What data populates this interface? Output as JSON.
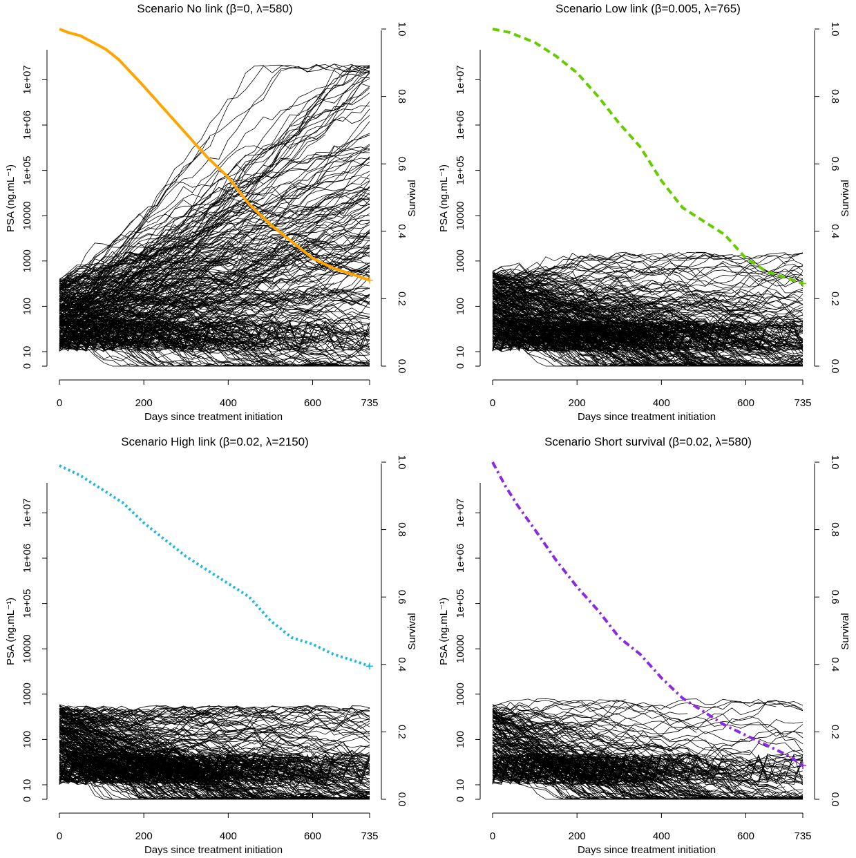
{
  "figure": {
    "panels_description": "four panels"
  },
  "chart_data": [
    {
      "type": "line",
      "title": "Scenario No link (β=0, λ=580)",
      "xlabel": "Days since treatment initiation",
      "ylabel_left": "PSA (ng.mL⁻¹)",
      "ylabel_right": "Survival",
      "x_ticks": [
        "0",
        "200",
        "400",
        "600",
        "735"
      ],
      "y_left_ticks": [
        "0",
        "10",
        "100",
        "1000",
        "10000",
        "1e+05",
        "1e+06",
        "1e+07"
      ],
      "y_right_ticks": [
        "0.0",
        "0.2",
        "0.4",
        "0.6",
        "0.8",
        "1.0"
      ],
      "xlim": [
        0,
        735
      ],
      "y_left_scale": "log (0 placed below 10)",
      "y_right_lim": [
        0,
        1
      ],
      "survival_color": "#FFA500",
      "survival_style": "solid",
      "survival_curve": {
        "x": [
          0,
          20,
          50,
          80,
          110,
          140,
          170,
          200,
          250,
          300,
          350,
          400,
          450,
          500,
          550,
          600,
          650,
          700,
          735
        ],
        "y": [
          1.0,
          0.99,
          0.98,
          0.96,
          0.94,
          0.91,
          0.87,
          0.83,
          0.76,
          0.69,
          0.62,
          0.56,
          0.48,
          0.42,
          0.37,
          0.32,
          0.29,
          0.27,
          0.255
        ]
      },
      "psa_trajectories": {
        "n_patients": 300,
        "start_range_ng_per_ml": [
          10,
          400
        ],
        "trend": "strong rise in a large share of patients, up to about 1e+07"
      }
    },
    {
      "type": "line",
      "title": "Scenario Low link (β=0.005, λ=765)",
      "xlabel": "Days since treatment initiation",
      "ylabel_left": "PSA (ng.mL⁻¹)",
      "ylabel_right": "Survival",
      "x_ticks": [
        "0",
        "200",
        "400",
        "600",
        "735"
      ],
      "y_left_ticks": [
        "0",
        "10",
        "100",
        "1000",
        "10000",
        "1e+05",
        "1e+06",
        "1e+07"
      ],
      "y_right_ticks": [
        "0.0",
        "0.2",
        "0.4",
        "0.6",
        "0.8",
        "1.0"
      ],
      "xlim": [
        0,
        735
      ],
      "y_left_scale": "log (0 placed below 10)",
      "y_right_lim": [
        0,
        1
      ],
      "survival_color": "#66CC00",
      "survival_style": "dashed",
      "survival_curve": {
        "x": [
          0,
          40,
          100,
          150,
          200,
          250,
          300,
          350,
          400,
          450,
          500,
          550,
          600,
          650,
          700,
          735
        ],
        "y": [
          1.0,
          0.99,
          0.96,
          0.92,
          0.87,
          0.8,
          0.72,
          0.65,
          0.55,
          0.47,
          0.43,
          0.39,
          0.32,
          0.28,
          0.26,
          0.245
        ]
      },
      "psa_trajectories": {
        "n_patients": 300,
        "start_range_ng_per_ml": [
          10,
          600
        ],
        "trend": "mostly flat or declining, staying below about 1500"
      }
    },
    {
      "type": "line",
      "title": "Scenario High link (β=0.02, λ=2150)",
      "xlabel": "Days since treatment initiation",
      "ylabel_left": "PSA (ng.mL⁻¹)",
      "ylabel_right": "Survival",
      "x_ticks": [
        "0",
        "200",
        "400",
        "600",
        "735"
      ],
      "y_left_ticks": [
        "0",
        "10",
        "100",
        "1000",
        "10000",
        "1e+05",
        "1e+06",
        "1e+07"
      ],
      "y_right_ticks": [
        "0.0",
        "0.2",
        "0.4",
        "0.6",
        "0.8",
        "1.0"
      ],
      "xlim": [
        0,
        735
      ],
      "y_left_scale": "log (0 placed below 10)",
      "y_right_lim": [
        0,
        1
      ],
      "survival_color": "#1EB8E0",
      "survival_style": "dotted",
      "survival_curve": {
        "x": [
          0,
          50,
          100,
          150,
          200,
          250,
          300,
          350,
          400,
          450,
          500,
          550,
          600,
          650,
          700,
          735
        ],
        "y": [
          0.99,
          0.96,
          0.92,
          0.88,
          0.82,
          0.77,
          0.72,
          0.68,
          0.64,
          0.6,
          0.53,
          0.48,
          0.46,
          0.43,
          0.41,
          0.395
        ]
      },
      "psa_trajectories": {
        "n_patients": 300,
        "start_range_ng_per_ml": [
          10,
          600
        ],
        "trend": "flat or declining, staying below about 500"
      }
    },
    {
      "type": "line",
      "title": "Scenario Short survival (β=0.02, λ=580)",
      "xlabel": "Days since treatment initiation",
      "ylabel_left": "PSA (ng.mL⁻¹)",
      "ylabel_right": "Survival",
      "x_ticks": [
        "0",
        "200",
        "400",
        "600",
        "735"
      ],
      "y_left_ticks": [
        "0",
        "10",
        "100",
        "1000",
        "10000",
        "1e+05",
        "1e+06",
        "1e+07"
      ],
      "y_right_ticks": [
        "0.0",
        "0.2",
        "0.4",
        "0.6",
        "0.8",
        "1.0"
      ],
      "xlim": [
        0,
        735
      ],
      "y_left_scale": "log (0 placed below 10)",
      "y_right_lim": [
        0,
        1
      ],
      "survival_color": "#8A2BE2",
      "survival_style": "dotdash",
      "survival_curve": {
        "x": [
          0,
          30,
          60,
          100,
          150,
          200,
          250,
          300,
          350,
          400,
          450,
          500,
          550,
          600,
          650,
          700,
          735
        ],
        "y": [
          1.0,
          0.93,
          0.87,
          0.8,
          0.71,
          0.63,
          0.56,
          0.48,
          0.43,
          0.36,
          0.3,
          0.26,
          0.22,
          0.19,
          0.16,
          0.13,
          0.1
        ]
      },
      "psa_trajectories": {
        "n_patients": 200,
        "start_range_ng_per_ml": [
          10,
          600
        ],
        "trend": "mostly declining, staying below about 700"
      }
    }
  ]
}
